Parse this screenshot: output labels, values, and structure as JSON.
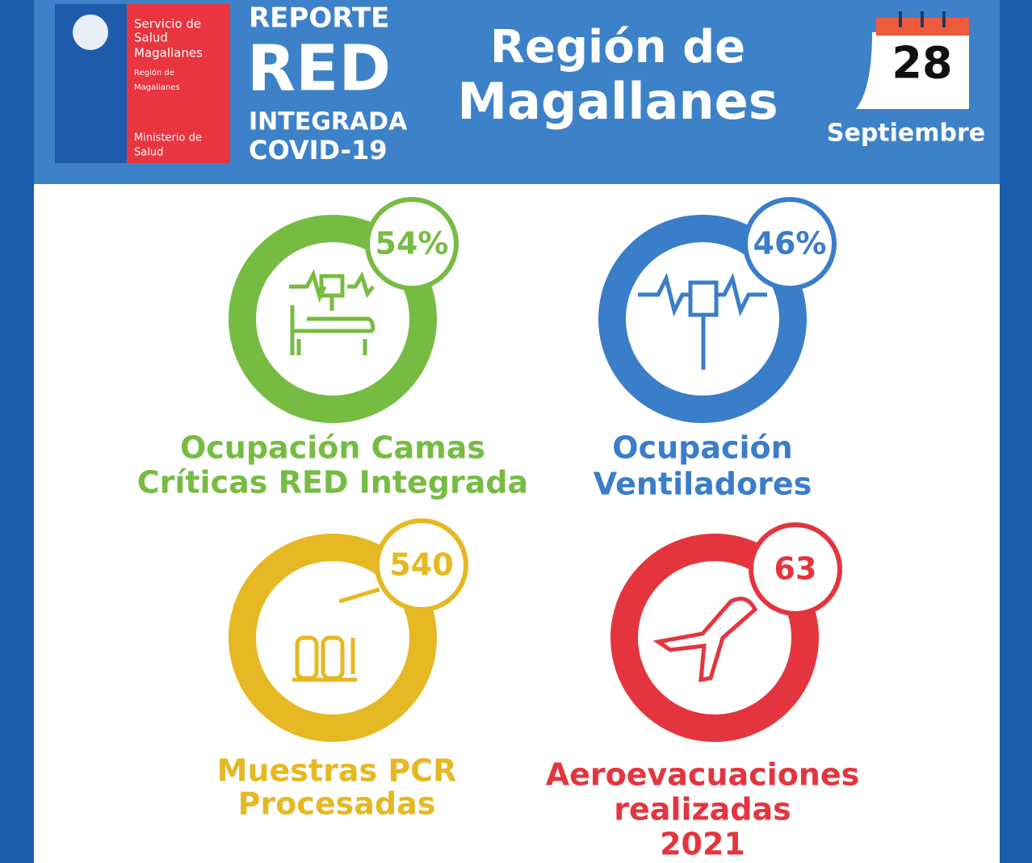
{
  "header": {
    "logo": {
      "lines": [
        "Servicio de",
        "Salud",
        "Magallanes"
      ],
      "region": [
        "Región de",
        "Magallanes"
      ],
      "ministry": [
        "Ministerio de",
        "Salud"
      ]
    },
    "report": [
      "REPORTE",
      "RED",
      "INTEGRADA",
      "COVID-19"
    ],
    "region_title": [
      "Región de",
      "Magallanes"
    ],
    "date": {
      "day": "28",
      "month": "Septiembre"
    }
  },
  "indicators": [
    {
      "value": "54%",
      "label": [
        "Ocupación Camas",
        "Críticas RED Integrada"
      ],
      "color": "#76bc43"
    },
    {
      "value": "46%",
      "label": [
        "Ocupación",
        "Ventiladores"
      ],
      "color": "#3a7dc9"
    },
    {
      "value": "540",
      "label": [
        "Muestras PCR",
        "Procesadas"
      ],
      "color": "#e6b823"
    },
    {
      "value": "63",
      "label": [
        "Aeroevacuaciones",
        "realizadas",
        "2021"
      ],
      "color": "#e4353f"
    }
  ]
}
